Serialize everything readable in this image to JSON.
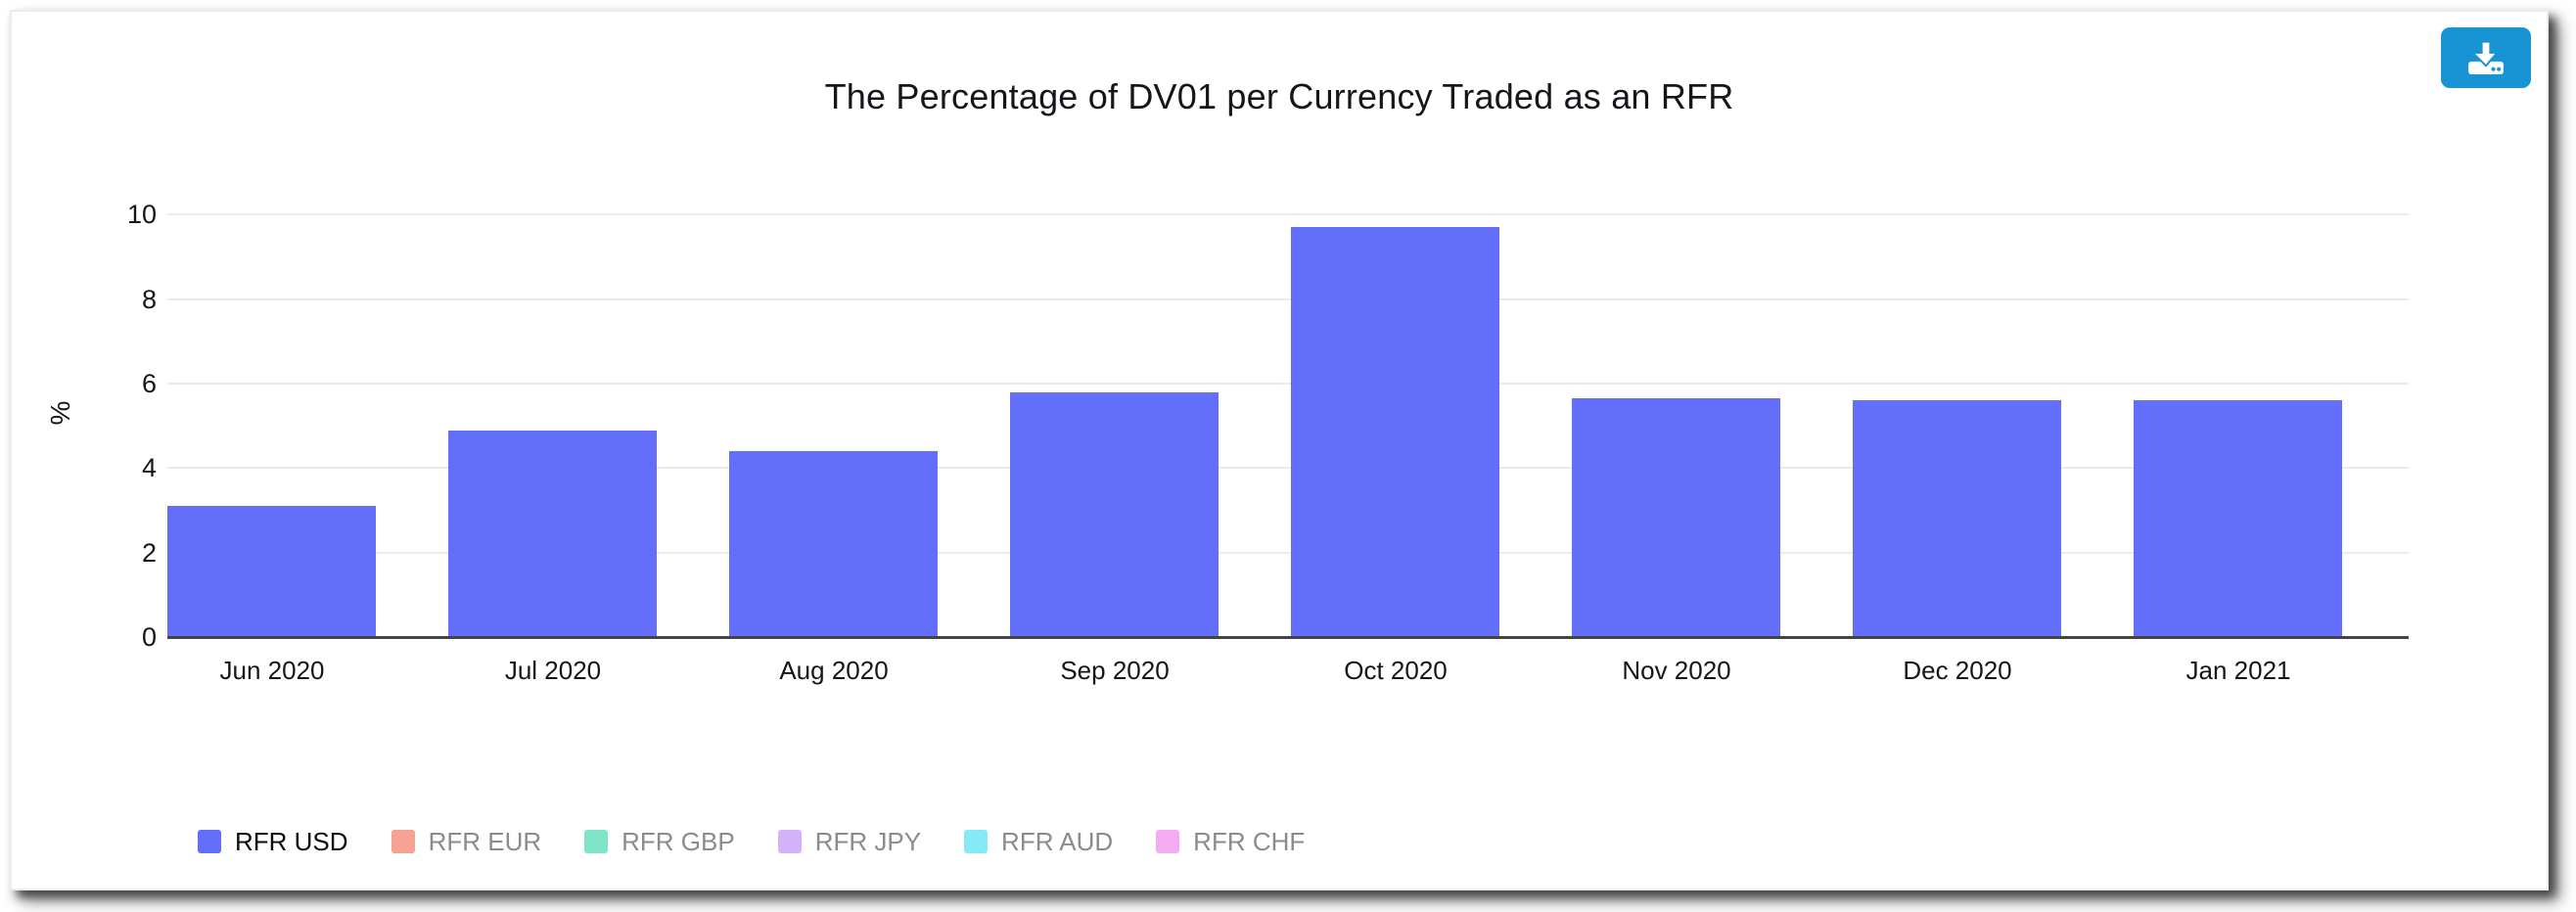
{
  "window": {
    "background": "#ffffff",
    "card_border_color": "#e9edf2"
  },
  "toolbar": {
    "download_icon": "download-to-tray-icon",
    "download_button_color": "#1894d5"
  },
  "chart_data": {
    "type": "bar",
    "title": "The Percentage of DV01 per Currency Traded as an RFR",
    "xlabel": "",
    "ylabel": "%",
    "categories": [
      "Jun 2020",
      "Jul 2020",
      "Aug 2020",
      "Sep 2020",
      "Oct 2020",
      "Nov 2020",
      "Dec 2020",
      "Jan 2021"
    ],
    "series": [
      {
        "name": "RFR USD",
        "color": "#636efa",
        "visible": true,
        "values": [
          3.1,
          4.9,
          4.4,
          5.8,
          9.7,
          5.65,
          5.6,
          5.6
        ]
      },
      {
        "name": "RFR EUR",
        "color": "#f6a396",
        "visible": false,
        "values": []
      },
      {
        "name": "RFR GBP",
        "color": "#7fe5c9",
        "visible": false,
        "values": []
      },
      {
        "name": "RFR JPY",
        "color": "#d4b2fa",
        "visible": false,
        "values": []
      },
      {
        "name": "RFR AUD",
        "color": "#86e9f8",
        "visible": false,
        "values": []
      },
      {
        "name": "RFR CHF",
        "color": "#f5abf1",
        "visible": false,
        "values": []
      }
    ],
    "yticks": [
      0,
      2,
      4,
      6,
      8,
      10
    ],
    "ylim": [
      0,
      10.75
    ],
    "grid": true,
    "gridline_color": "#ebebeb",
    "axis_line_color": "#444444",
    "tick_text_color": "#15161a",
    "legend_position": "bottom",
    "legend_active_text_color": "#0c0c0c",
    "legend_inactive_text_color": "#8b8b8b"
  }
}
